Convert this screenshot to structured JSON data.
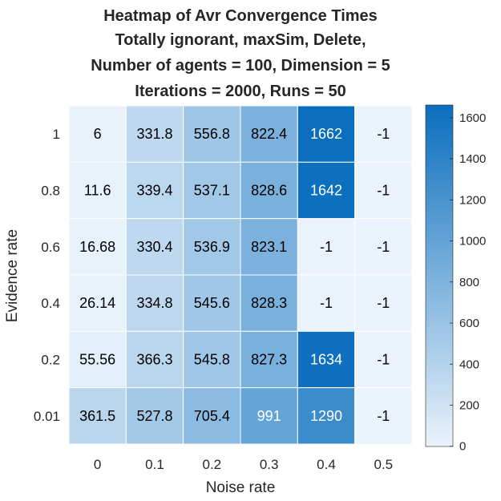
{
  "chart_data": {
    "type": "heatmap",
    "title_lines": [
      "Heatmap of Avr Convergence Times",
      "Totally ignorant, maxSim, Delete,",
      "Number of agents = 100, Dimension = 5",
      "Iterations = 2000, Runs = 50"
    ],
    "xlabel": "Noise rate",
    "ylabel": "Evidence rate",
    "x_categories": [
      "0",
      "0.1",
      "0.2",
      "0.3",
      "0.4",
      "0.5"
    ],
    "y_categories": [
      "1",
      "0.8",
      "0.6",
      "0.4",
      "0.2",
      "0.01"
    ],
    "values": [
      [
        6,
        331.8,
        556.8,
        822.4,
        1662,
        -1
      ],
      [
        11.6,
        339.4,
        537.1,
        828.6,
        1642,
        -1
      ],
      [
        16.68,
        330.4,
        536.9,
        823.1,
        -1,
        -1
      ],
      [
        26.14,
        334.8,
        545.6,
        828.3,
        -1,
        -1
      ],
      [
        55.56,
        366.3,
        545.8,
        827.3,
        1634,
        -1
      ],
      [
        361.5,
        527.8,
        705.4,
        991,
        1290,
        -1
      ]
    ],
    "cell_labels": [
      [
        "6",
        "331.8",
        "556.8",
        "822.4",
        "1662",
        "-1"
      ],
      [
        "11.6",
        "339.4",
        "537.1",
        "828.6",
        "1642",
        "-1"
      ],
      [
        "16.68",
        "330.4",
        "536.9",
        "823.1",
        "-1",
        "-1"
      ],
      [
        "26.14",
        "334.8",
        "545.6",
        "828.3",
        "-1",
        "-1"
      ],
      [
        "55.56",
        "366.3",
        "545.8",
        "827.3",
        "1634",
        "-1"
      ],
      [
        "361.5",
        "527.8",
        "705.4",
        "991",
        "1290",
        "-1"
      ]
    ],
    "colorbar": {
      "range": [
        -1,
        1662
      ],
      "ticks": [
        0,
        200,
        400,
        600,
        800,
        1000,
        1200,
        1400,
        1600
      ],
      "color_low": "#EAF3FB",
      "color_high": "#0A6EBD"
    },
    "grid_color": "#ffffff",
    "text_color_dark": "#000000",
    "text_color_light": "#ffffff"
  }
}
